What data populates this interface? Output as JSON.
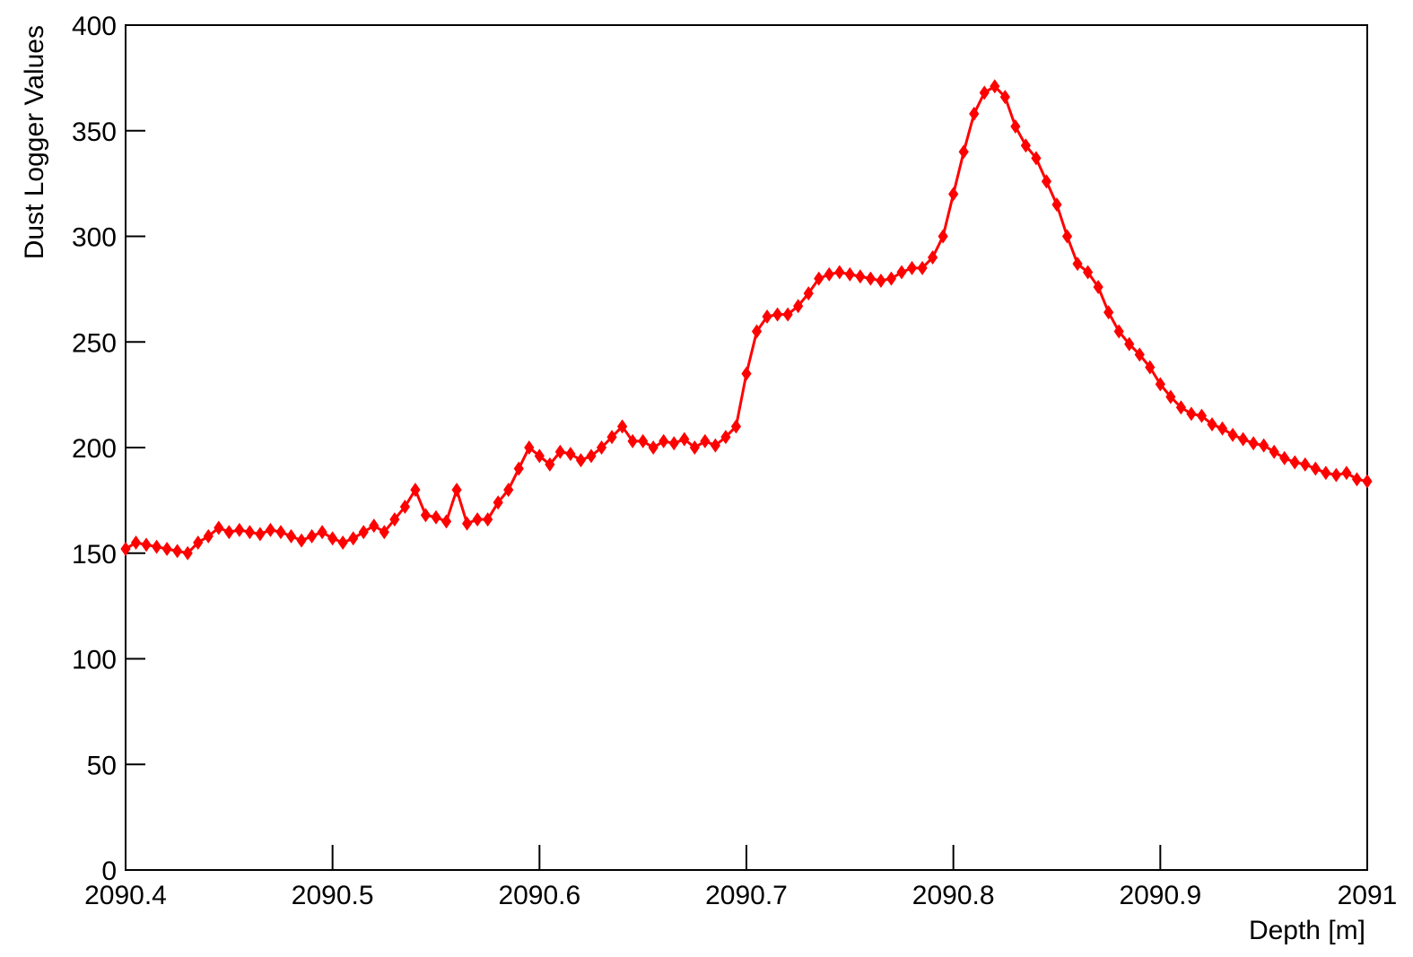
{
  "chart_data": {
    "type": "line",
    "x_label": "Depth [m]",
    "y_label": "Dust Logger Values",
    "x": [
      2090.4,
      2090.405,
      2090.41,
      2090.415,
      2090.42,
      2090.425,
      2090.43,
      2090.435,
      2090.44,
      2090.445,
      2090.45,
      2090.455,
      2090.46,
      2090.465,
      2090.47,
      2090.475,
      2090.48,
      2090.485,
      2090.49,
      2090.495,
      2090.5,
      2090.505,
      2090.51,
      2090.515,
      2090.52,
      2090.525,
      2090.53,
      2090.535,
      2090.54,
      2090.545,
      2090.55,
      2090.555,
      2090.56,
      2090.565,
      2090.57,
      2090.575,
      2090.58,
      2090.585,
      2090.59,
      2090.595,
      2090.6,
      2090.605,
      2090.61,
      2090.615,
      2090.62,
      2090.625,
      2090.63,
      2090.635,
      2090.64,
      2090.645,
      2090.65,
      2090.655,
      2090.66,
      2090.665,
      2090.67,
      2090.675,
      2090.68,
      2090.685,
      2090.69,
      2090.695,
      2090.7,
      2090.705,
      2090.71,
      2090.715,
      2090.72,
      2090.725,
      2090.73,
      2090.735,
      2090.74,
      2090.745,
      2090.75,
      2090.755,
      2090.76,
      2090.765,
      2090.77,
      2090.775,
      2090.78,
      2090.785,
      2090.79,
      2090.795,
      2090.8,
      2090.805,
      2090.81,
      2090.815,
      2090.82,
      2090.825,
      2090.83,
      2090.835,
      2090.84,
      2090.845,
      2090.85,
      2090.855,
      2090.86,
      2090.865,
      2090.87,
      2090.875,
      2090.88,
      2090.885,
      2090.89,
      2090.895,
      2090.9,
      2090.905,
      2090.91,
      2090.915,
      2090.92,
      2090.925,
      2090.93,
      2090.935,
      2090.94,
      2090.945,
      2090.95,
      2090.955,
      2090.96,
      2090.965,
      2090.97,
      2090.975,
      2090.98,
      2090.985,
      2090.99,
      2090.995,
      2091.0
    ],
    "series": [
      {
        "color": "#ff0000",
        "values": [
          152,
          155,
          154,
          153,
          152,
          151,
          150,
          155,
          158,
          162,
          160,
          161,
          160,
          159,
          161,
          160,
          158,
          156,
          158,
          160,
          157,
          155,
          157,
          160,
          163,
          160,
          166,
          172,
          180,
          168,
          167,
          165,
          180,
          164,
          166,
          166,
          174,
          180,
          190,
          200,
          196,
          192,
          198,
          197,
          194,
          196,
          200,
          205,
          210,
          203,
          203,
          200,
          203,
          202,
          204,
          200,
          203,
          201,
          205,
          210,
          235,
          255,
          262,
          263,
          263,
          267,
          273,
          280,
          282,
          283,
          282,
          281,
          280,
          279,
          280,
          283,
          285,
          285,
          290,
          300,
          320,
          340,
          358,
          368,
          371,
          366,
          352,
          343,
          337,
          326,
          315,
          300,
          287,
          283,
          276,
          264,
          255,
          249,
          244,
          238,
          230,
          224,
          219,
          216,
          215,
          211,
          209,
          206,
          204,
          202,
          201,
          198,
          195,
          193,
          192,
          190,
          188,
          187,
          188,
          185,
          184
        ]
      }
    ],
    "xlim": [
      2090.4,
      2091
    ],
    "xticks": [
      2090.4,
      2090.5,
      2090.6,
      2090.7,
      2090.8,
      2090.9,
      2091
    ],
    "ylim": [
      0,
      400
    ],
    "yticks": [
      0,
      50,
      100,
      150,
      200,
      250,
      300,
      350,
      400
    ]
  }
}
